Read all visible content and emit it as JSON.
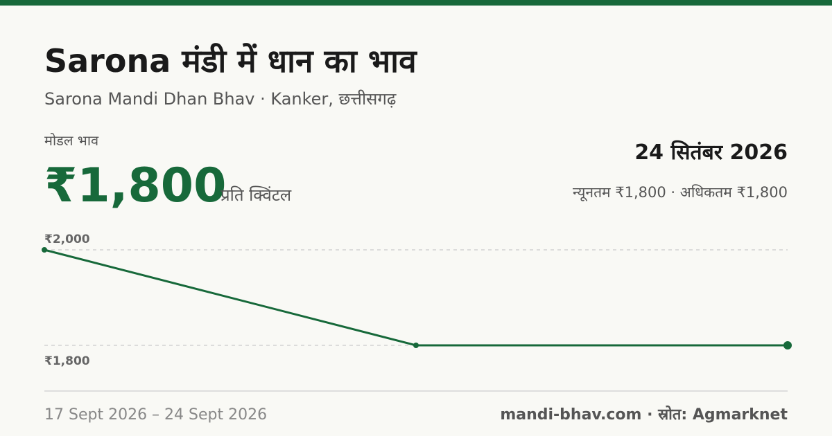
{
  "title": "Sarona मंडी में धान का भाव",
  "subtitle": "Sarona Mandi Dhan Bhav · Kanker, छत्तीसगढ़",
  "modal_label": "मोडल भाव",
  "modal_price": "₹1,800",
  "unit": "प्रति क्विंटल",
  "date": "24 सितंबर 2026",
  "range": "न्यूनतम ₹1,800 · अधिकतम ₹1,800",
  "footer_dates": "17 Sept 2026 – 24 Sept 2026",
  "source": "mandi-bhav.com · स्रोत: Agmarknet",
  "chart_data": {
    "type": "line",
    "categories": [
      null,
      null,
      null
    ],
    "values": [
      2000,
      1800,
      1800
    ],
    "color": "#17693a",
    "ylim": [
      1800,
      2000
    ],
    "yticks": [
      {
        "value": 2000,
        "label": "₹2,000"
      },
      {
        "value": 1800,
        "label": "₹1,800"
      }
    ],
    "grid": true
  }
}
